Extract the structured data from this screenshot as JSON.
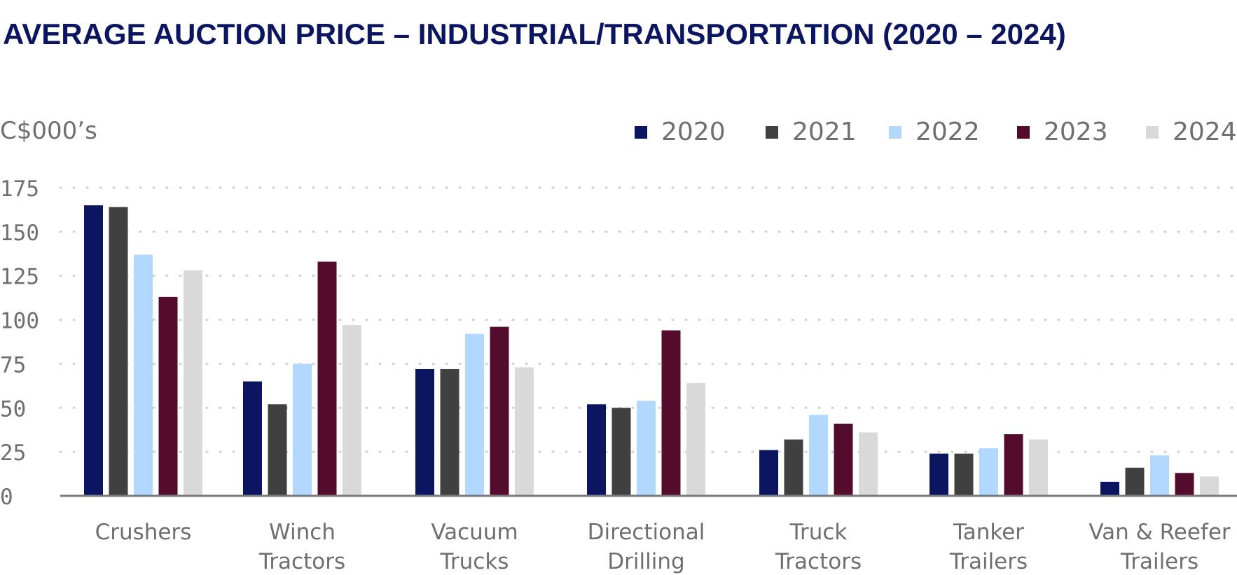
{
  "chart_data": {
    "type": "bar",
    "title": "AVERAGE AUCTION PRICE – INDUSTRIAL/TRANSPORTATION (2020 – 2024)",
    "ylabel": "C$000’s",
    "xlabel": "",
    "ylim": [
      0,
      175
    ],
    "yticks": [
      "0",
      "25",
      "50",
      "75",
      "100",
      "125",
      "150",
      "175"
    ],
    "ytick_values": [
      0,
      25,
      50,
      75,
      100,
      125,
      150,
      175
    ],
    "grid": true,
    "legend_position": "top-right",
    "categories": [
      [
        "Crushers"
      ],
      [
        "Winch",
        "Tractors"
      ],
      [
        "Vacuum",
        "Trucks"
      ],
      [
        "Directional",
        "Drilling"
      ],
      [
        "Truck",
        "Tractors"
      ],
      [
        "Tanker",
        "Trailers"
      ],
      [
        "Van & Reefer",
        "Trailers"
      ]
    ],
    "series": [
      {
        "name": "2020",
        "color": "#0b1560",
        "values": [
          165,
          65,
          72,
          52,
          26,
          24,
          8
        ]
      },
      {
        "name": "2021",
        "color": "#404040",
        "values": [
          164,
          52,
          72,
          50,
          32,
          24,
          16
        ]
      },
      {
        "name": "2022",
        "color": "#b3d8ff",
        "values": [
          137,
          75,
          92,
          54,
          46,
          27,
          23
        ]
      },
      {
        "name": "2023",
        "color": "#530c2c",
        "values": [
          113,
          133,
          96,
          94,
          41,
          35,
          13
        ]
      },
      {
        "name": "2024",
        "color": "#d9d9d9",
        "values": [
          128,
          97,
          73,
          64,
          36,
          32,
          11
        ]
      }
    ]
  }
}
